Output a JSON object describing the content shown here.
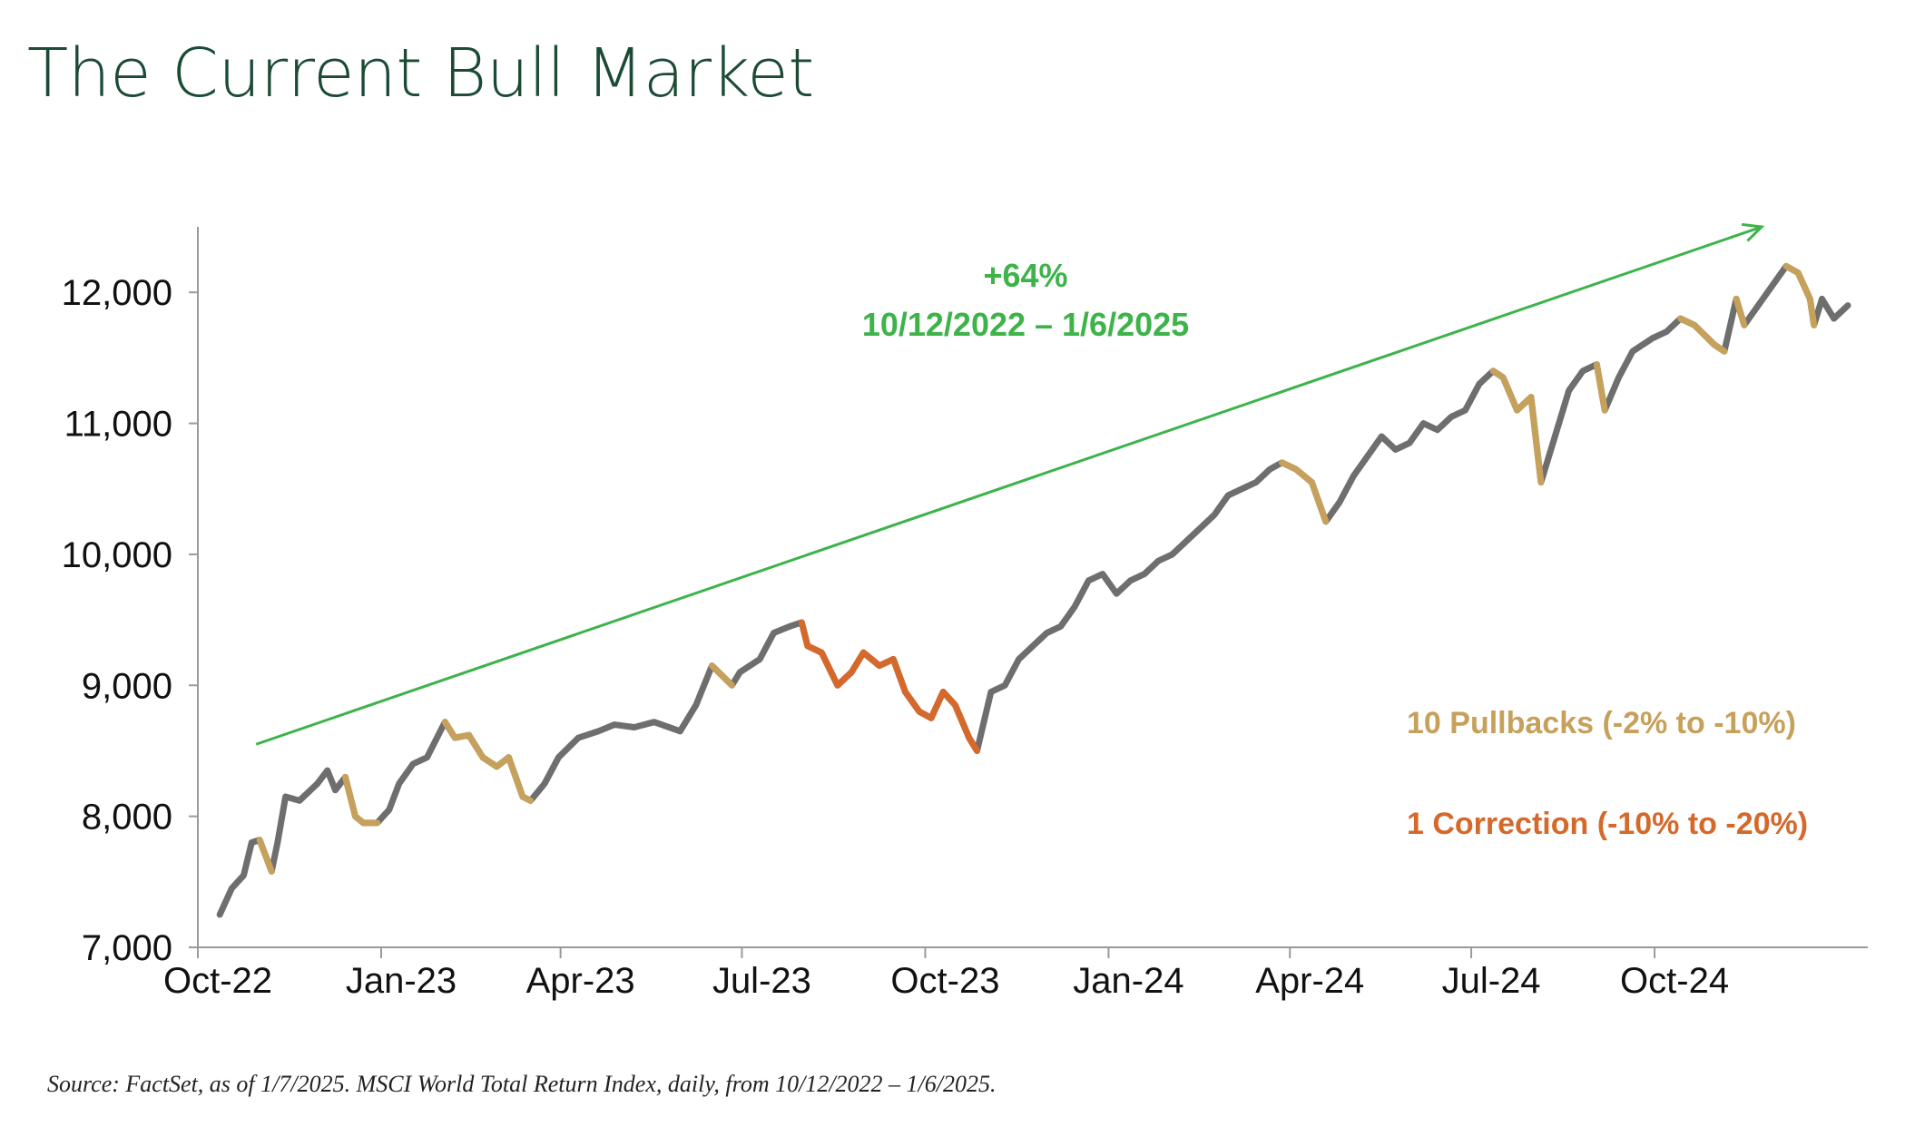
{
  "title": "The Current Bull Market",
  "source": "Source: FactSet, as of 1/7/2025. MSCI World Total Return Index, daily, from 10/12/2022 – 1/6/2025.",
  "colors": {
    "title": "#1b4a35",
    "series_main": "#6e6e6e",
    "pullback": "#c6a15b",
    "correction": "#d4692b",
    "trend_arrow": "#3db34a",
    "axis": "#9a9a9a"
  },
  "chart_data": {
    "type": "line",
    "title": "",
    "xlabel": "",
    "ylabel": "",
    "ylim": [
      7000,
      12500
    ],
    "y_ticks": [
      7000,
      8000,
      9000,
      10000,
      11000,
      12000
    ],
    "y_tick_labels": [
      "7,000",
      "8,000",
      "9,000",
      "10,000",
      "11,000",
      "12,000"
    ],
    "x_range": [
      "2022-10-12",
      "2025-01-06"
    ],
    "x_ticks": [
      "2022-10-01",
      "2023-01-01",
      "2023-04-01",
      "2023-07-01",
      "2023-10-01",
      "2024-01-01",
      "2024-04-01",
      "2024-07-01",
      "2024-10-01"
    ],
    "x_tick_labels": [
      "Oct-22",
      "Jan-23",
      "Apr-23",
      "Jul-23",
      "Oct-23",
      "Jan-24",
      "Apr-24",
      "Jul-24",
      "Oct-24"
    ],
    "series": [
      {
        "name": "",
        "points": [
          [
            "2022-10-12",
            7250
          ],
          [
            "2022-10-18",
            7450
          ],
          [
            "2022-10-24",
            7550
          ],
          [
            "2022-10-28",
            7800
          ],
          [
            "2022-11-01",
            7820
          ],
          [
            "2022-11-07",
            7580
          ],
          [
            "2022-11-10",
            7800
          ],
          [
            "2022-11-14",
            8150
          ],
          [
            "2022-11-21",
            8120
          ],
          [
            "2022-11-30",
            8250
          ],
          [
            "2022-12-05",
            8350
          ],
          [
            "2022-12-09",
            8200
          ],
          [
            "2022-12-14",
            8300
          ],
          [
            "2022-12-19",
            8000
          ],
          [
            "2022-12-23",
            7950
          ],
          [
            "2022-12-30",
            7950
          ],
          [
            "2023-01-05",
            8050
          ],
          [
            "2023-01-10",
            8250
          ],
          [
            "2023-01-17",
            8400
          ],
          [
            "2023-01-24",
            8450
          ],
          [
            "2023-02-02",
            8720
          ],
          [
            "2023-02-07",
            8600
          ],
          [
            "2023-02-14",
            8620
          ],
          [
            "2023-02-21",
            8450
          ],
          [
            "2023-02-28",
            8380
          ],
          [
            "2023-03-06",
            8450
          ],
          [
            "2023-03-13",
            8150
          ],
          [
            "2023-03-17",
            8120
          ],
          [
            "2023-03-24",
            8250
          ],
          [
            "2023-03-31",
            8450
          ],
          [
            "2023-04-10",
            8600
          ],
          [
            "2023-04-20",
            8650
          ],
          [
            "2023-04-28",
            8700
          ],
          [
            "2023-05-08",
            8680
          ],
          [
            "2023-05-18",
            8720
          ],
          [
            "2023-05-31",
            8650
          ],
          [
            "2023-06-08",
            8850
          ],
          [
            "2023-06-16",
            9150
          ],
          [
            "2023-06-26",
            9000
          ],
          [
            "2023-06-30",
            9100
          ],
          [
            "2023-07-10",
            9200
          ],
          [
            "2023-07-17",
            9400
          ],
          [
            "2023-07-25",
            9450
          ],
          [
            "2023-07-31",
            9480
          ],
          [
            "2023-08-03",
            9300
          ],
          [
            "2023-08-10",
            9250
          ],
          [
            "2023-08-18",
            9000
          ],
          [
            "2023-08-25",
            9100
          ],
          [
            "2023-08-31",
            9250
          ],
          [
            "2023-09-08",
            9150
          ],
          [
            "2023-09-15",
            9200
          ],
          [
            "2023-09-21",
            8950
          ],
          [
            "2023-09-28",
            8800
          ],
          [
            "2023-10-04",
            8750
          ],
          [
            "2023-10-10",
            8950
          ],
          [
            "2023-10-16",
            8850
          ],
          [
            "2023-10-23",
            8600
          ],
          [
            "2023-10-27",
            8500
          ],
          [
            "2023-11-03",
            8950
          ],
          [
            "2023-11-10",
            9000
          ],
          [
            "2023-11-17",
            9200
          ],
          [
            "2023-11-24",
            9300
          ],
          [
            "2023-12-01",
            9400
          ],
          [
            "2023-12-08",
            9450
          ],
          [
            "2023-12-15",
            9600
          ],
          [
            "2023-12-22",
            9800
          ],
          [
            "2023-12-29",
            9850
          ],
          [
            "2024-01-05",
            9700
          ],
          [
            "2024-01-12",
            9800
          ],
          [
            "2024-01-19",
            9850
          ],
          [
            "2024-01-26",
            9950
          ],
          [
            "2024-02-02",
            10000
          ],
          [
            "2024-02-09",
            10100
          ],
          [
            "2024-02-16",
            10200
          ],
          [
            "2024-02-23",
            10300
          ],
          [
            "2024-03-01",
            10450
          ],
          [
            "2024-03-08",
            10500
          ],
          [
            "2024-03-15",
            10550
          ],
          [
            "2024-03-22",
            10650
          ],
          [
            "2024-03-28",
            10700
          ],
          [
            "2024-04-04",
            10650
          ],
          [
            "2024-04-12",
            10550
          ],
          [
            "2024-04-19",
            10250
          ],
          [
            "2024-04-26",
            10400
          ],
          [
            "2024-05-03",
            10600
          ],
          [
            "2024-05-10",
            10750
          ],
          [
            "2024-05-17",
            10900
          ],
          [
            "2024-05-24",
            10800
          ],
          [
            "2024-05-31",
            10850
          ],
          [
            "2024-06-07",
            11000
          ],
          [
            "2024-06-14",
            10950
          ],
          [
            "2024-06-21",
            11050
          ],
          [
            "2024-06-28",
            11100
          ],
          [
            "2024-07-05",
            11300
          ],
          [
            "2024-07-12",
            11400
          ],
          [
            "2024-07-17",
            11350
          ],
          [
            "2024-07-24",
            11100
          ],
          [
            "2024-07-31",
            11200
          ],
          [
            "2024-08-05",
            10550
          ],
          [
            "2024-08-12",
            10900
          ],
          [
            "2024-08-19",
            11250
          ],
          [
            "2024-08-26",
            11400
          ],
          [
            "2024-09-02",
            11450
          ],
          [
            "2024-09-06",
            11100
          ],
          [
            "2024-09-13",
            11350
          ],
          [
            "2024-09-20",
            11550
          ],
          [
            "2024-09-30",
            11650
          ],
          [
            "2024-10-07",
            11700
          ],
          [
            "2024-10-14",
            11800
          ],
          [
            "2024-10-21",
            11750
          ],
          [
            "2024-10-31",
            11600
          ],
          [
            "2024-11-05",
            11550
          ],
          [
            "2024-11-11",
            11950
          ],
          [
            "2024-11-15",
            11750
          ],
          [
            "2024-11-22",
            11900
          ],
          [
            "2024-11-29",
            12050
          ],
          [
            "2024-12-06",
            12200
          ],
          [
            "2024-12-12",
            12150
          ],
          [
            "2024-12-18",
            11950
          ],
          [
            "2024-12-20",
            11750
          ],
          [
            "2024-12-24",
            11950
          ],
          [
            "2024-12-30",
            11800
          ],
          [
            "2025-01-06",
            11900
          ]
        ]
      }
    ],
    "highlights": {
      "pullbacks": [
        [
          "2022-10-31",
          "2022-11-08"
        ],
        [
          "2022-12-13",
          "2022-12-30"
        ],
        [
          "2023-02-02",
          "2023-03-17"
        ],
        [
          "2023-06-16",
          "2023-06-26"
        ],
        [
          "2024-03-28",
          "2024-04-19"
        ],
        [
          "2024-07-10",
          "2024-08-05"
        ],
        [
          "2024-09-02",
          "2024-09-06"
        ],
        [
          "2024-10-14",
          "2024-11-05"
        ],
        [
          "2024-11-11",
          "2024-11-15"
        ],
        [
          "2024-12-06",
          "2024-12-20"
        ]
      ],
      "correction": [
        "2023-07-31",
        "2023-10-27"
      ]
    },
    "annotation": {
      "line1": "+64%",
      "line2": "10/12/2022 – 1/6/2025",
      "arrow_start": [
        "2022-10-12",
        8550
      ],
      "arrow_end": [
        "2025-01-06",
        12500
      ]
    },
    "legend": {
      "pullbacks": "10 Pullbacks (-2% to -10%)",
      "correction": "1 Correction (-10% to -20%)",
      "position": "right"
    }
  }
}
